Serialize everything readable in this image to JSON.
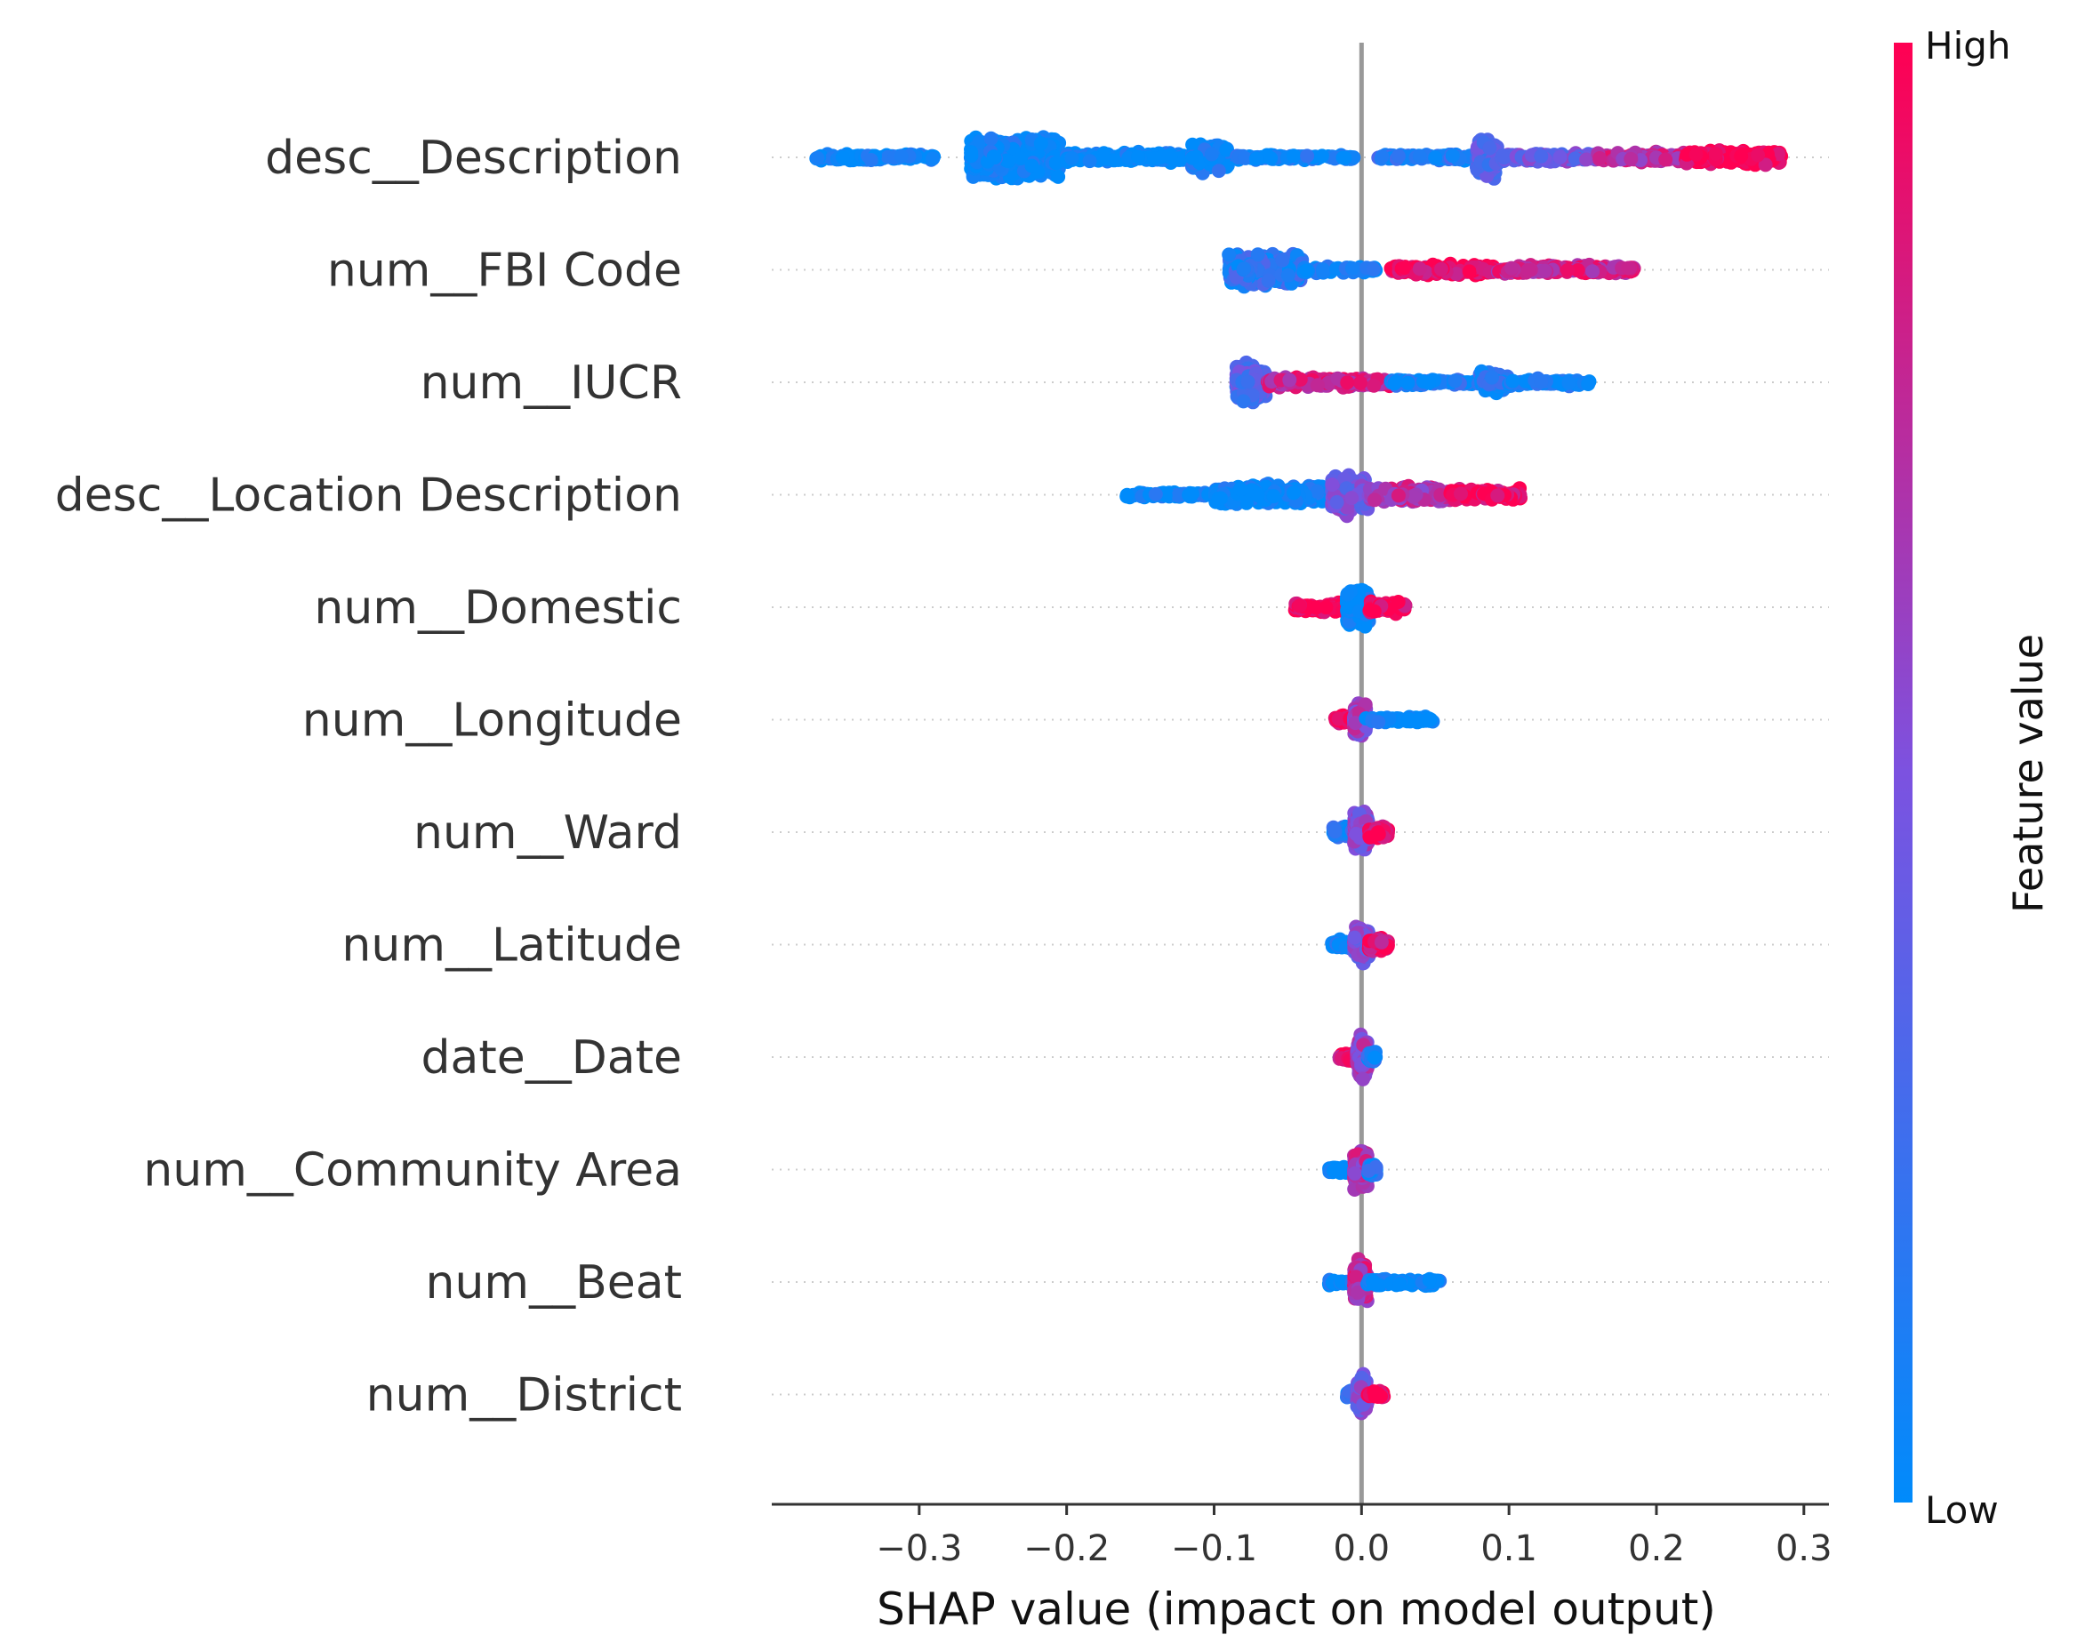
{
  "chart_data": {
    "type": "scatter",
    "subtype": "shap-beeswarm-summary",
    "xlabel": "SHAP value (impact on model output)",
    "xlim": [
      -0.4,
      0.317
    ],
    "xticks": [
      -0.3,
      -0.2,
      -0.1,
      0.0,
      0.1,
      0.2,
      0.3
    ],
    "xtick_labels": [
      "−0.3",
      "−0.2",
      "−0.1",
      "0.0",
      "0.1",
      "0.2",
      "0.3"
    ],
    "zero_line": 0.0,
    "colorbar": {
      "title": "Feature value",
      "high_label": "High",
      "low_label": "Low",
      "low_color": "#008bfb",
      "mid_color": "#7c52e0",
      "high_color": "#ff0052"
    },
    "features": [
      {
        "name": "desc__Description",
        "clusters": [
          {
            "x": -0.37,
            "x2": -0.29,
            "w": 0.08,
            "c": 0.0,
            "n": 120
          },
          {
            "x": -0.265,
            "x2": -0.205,
            "w": 0.45,
            "c": 0.0,
            "n": 700
          },
          {
            "x": -0.2,
            "x2": -0.12,
            "w": 0.12,
            "c": 0.0,
            "n": 160
          },
          {
            "x": -0.115,
            "x2": -0.09,
            "w": 0.32,
            "c": 0.05,
            "n": 240
          },
          {
            "x": -0.085,
            "x2": -0.005,
            "w": 0.06,
            "c": 0.05,
            "n": 90
          },
          {
            "x": 0.01,
            "x2": 0.075,
            "w": 0.07,
            "c": 0.15,
            "n": 90
          },
          {
            "x": 0.078,
            "x2": 0.092,
            "w": 0.42,
            "c": 0.3,
            "n": 200
          },
          {
            "x": 0.095,
            "x2": 0.16,
            "w": 0.1,
            "c": 0.45,
            "n": 140
          },
          {
            "x": 0.16,
            "x2": 0.22,
            "w": 0.12,
            "c": 0.75,
            "n": 160
          },
          {
            "x": 0.22,
            "x2": 0.285,
            "w": 0.16,
            "c": 1.0,
            "n": 260
          }
        ]
      },
      {
        "name": "num__FBI Code",
        "clusters": [
          {
            "x": -0.09,
            "x2": -0.04,
            "w": 0.42,
            "c": 0.15,
            "n": 320
          },
          {
            "x": -0.04,
            "x2": 0.01,
            "w": 0.08,
            "c": 0.05,
            "n": 70
          },
          {
            "x": 0.02,
            "x2": 0.09,
            "w": 0.12,
            "c": 0.95,
            "n": 170
          },
          {
            "x": 0.09,
            "x2": 0.185,
            "w": 0.11,
            "c": 0.8,
            "n": 190
          }
        ]
      },
      {
        "name": "num__IUCR",
        "clusters": [
          {
            "x": -0.085,
            "x2": -0.065,
            "w": 0.45,
            "c": 0.35,
            "n": 260
          },
          {
            "x": -0.065,
            "x2": 0.02,
            "w": 0.12,
            "c": 0.8,
            "n": 200
          },
          {
            "x": 0.02,
            "x2": 0.08,
            "w": 0.07,
            "c": 0.1,
            "n": 90
          },
          {
            "x": 0.08,
            "x2": 0.1,
            "w": 0.25,
            "c": 0.1,
            "n": 110
          },
          {
            "x": 0.1,
            "x2": 0.155,
            "w": 0.08,
            "c": 0.05,
            "n": 70
          }
        ]
      },
      {
        "name": "desc__Location Description",
        "clusters": [
          {
            "x": -0.16,
            "x2": -0.1,
            "w": 0.06,
            "c": 0.0,
            "n": 80
          },
          {
            "x": -0.1,
            "x2": -0.025,
            "w": 0.25,
            "c": 0.0,
            "n": 320
          },
          {
            "x": -0.02,
            "x2": 0.005,
            "w": 0.45,
            "c": 0.45,
            "n": 260
          },
          {
            "x": 0.005,
            "x2": 0.06,
            "w": 0.2,
            "c": 0.7,
            "n": 200
          },
          {
            "x": 0.06,
            "x2": 0.108,
            "w": 0.14,
            "c": 0.95,
            "n": 140
          }
        ]
      },
      {
        "name": "num__Domestic",
        "clusters": [
          {
            "x": -0.045,
            "x2": -0.01,
            "w": 0.12,
            "c": 1.0,
            "n": 80
          },
          {
            "x": -0.01,
            "x2": 0.005,
            "w": 0.45,
            "c": 0.0,
            "n": 240
          },
          {
            "x": 0.005,
            "x2": 0.03,
            "w": 0.14,
            "c": 0.95,
            "n": 100
          }
        ]
      },
      {
        "name": "num__Longitude",
        "clusters": [
          {
            "x": -0.018,
            "x2": -0.005,
            "w": 0.1,
            "c": 0.95,
            "n": 40
          },
          {
            "x": -0.005,
            "x2": 0.003,
            "w": 0.38,
            "c": 0.6,
            "n": 200
          },
          {
            "x": 0.003,
            "x2": 0.05,
            "w": 0.08,
            "c": 0.0,
            "n": 80
          }
        ]
      },
      {
        "name": "num__Ward",
        "clusters": [
          {
            "x": -0.02,
            "x2": -0.005,
            "w": 0.14,
            "c": 0.1,
            "n": 60
          },
          {
            "x": -0.005,
            "x2": 0.005,
            "w": 0.42,
            "c": 0.55,
            "n": 220
          },
          {
            "x": 0.005,
            "x2": 0.018,
            "w": 0.15,
            "c": 0.9,
            "n": 70
          }
        ]
      },
      {
        "name": "num__Latitude",
        "clusters": [
          {
            "x": -0.02,
            "x2": -0.005,
            "w": 0.12,
            "c": 0.05,
            "n": 60
          },
          {
            "x": -0.005,
            "x2": 0.005,
            "w": 0.42,
            "c": 0.5,
            "n": 220
          },
          {
            "x": 0.005,
            "x2": 0.018,
            "w": 0.16,
            "c": 0.9,
            "n": 70
          }
        ]
      },
      {
        "name": "date__Date",
        "clusters": [
          {
            "x": -0.015,
            "x2": -0.003,
            "w": 0.12,
            "c": 0.9,
            "n": 50
          },
          {
            "x": -0.003,
            "x2": 0.004,
            "w": 0.45,
            "c": 0.6,
            "n": 230
          },
          {
            "x": 0.004,
            "x2": 0.01,
            "w": 0.18,
            "c": 0.1,
            "n": 50
          }
        ]
      },
      {
        "name": "num__Community Area",
        "clusters": [
          {
            "x": -0.022,
            "x2": -0.005,
            "w": 0.08,
            "c": 0.0,
            "n": 40
          },
          {
            "x": -0.005,
            "x2": 0.004,
            "w": 0.42,
            "c": 0.7,
            "n": 220
          },
          {
            "x": 0.004,
            "x2": 0.01,
            "w": 0.14,
            "c": 0.1,
            "n": 40
          }
        ]
      },
      {
        "name": "num__Beat",
        "clusters": [
          {
            "x": -0.022,
            "x2": -0.005,
            "w": 0.08,
            "c": 0.0,
            "n": 30
          },
          {
            "x": -0.005,
            "x2": 0.004,
            "w": 0.45,
            "c": 0.75,
            "n": 200
          },
          {
            "x": 0.004,
            "x2": 0.053,
            "w": 0.08,
            "c": 0.0,
            "n": 90
          }
        ]
      },
      {
        "name": "num__District",
        "clusters": [
          {
            "x": -0.01,
            "x2": -0.002,
            "w": 0.12,
            "c": 0.1,
            "n": 40
          },
          {
            "x": -0.003,
            "x2": 0.004,
            "w": 0.45,
            "c": 0.45,
            "n": 200
          },
          {
            "x": 0.004,
            "x2": 0.015,
            "w": 0.1,
            "c": 0.95,
            "n": 40
          }
        ]
      }
    ]
  }
}
